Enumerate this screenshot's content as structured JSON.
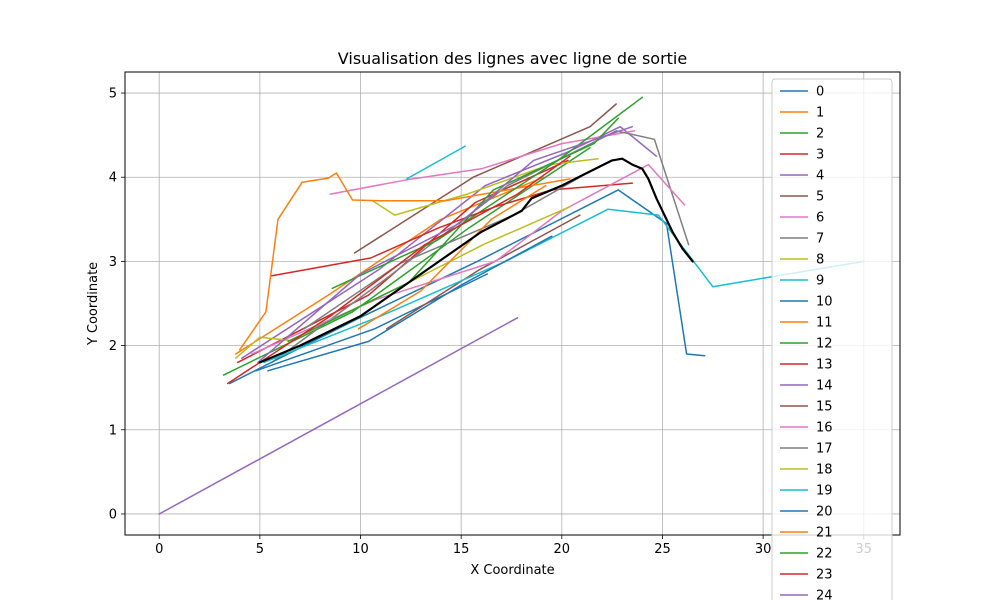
{
  "chart_data": {
    "type": "line",
    "title": "Visualisation des lignes avec ligne de sortie",
    "xlabel": "X Coordinate",
    "ylabel": "Y Coordinate",
    "xlim": [
      -1.7,
      36.8
    ],
    "ylim": [
      -0.25,
      5.25
    ],
    "xticks": [
      0,
      5,
      10,
      15,
      20,
      25,
      30,
      35
    ],
    "yticks": [
      0,
      1,
      2,
      3,
      4,
      5
    ],
    "grid": true,
    "legend_position": "right (overflowing bottom)",
    "series": [
      {
        "name": "0",
        "color": "#1f77b4",
        "x": [
          4.8,
          10.7,
          16.3
        ],
        "y": [
          1.7,
          2.2,
          2.85
        ]
      },
      {
        "name": "1",
        "color": "#ff7f0e",
        "x": [
          3.8,
          8.4,
          14.0,
          19.1
        ],
        "y": [
          1.9,
          2.6,
          3.5,
          4.0
        ]
      },
      {
        "name": "2",
        "color": "#2ca02c",
        "x": [
          3.2,
          9.6,
          15.4,
          21.4
        ],
        "y": [
          1.65,
          2.4,
          3.4,
          4.35
        ]
      },
      {
        "name": "3",
        "color": "#d62728",
        "x": [
          3.9,
          10.4,
          15.7,
          20.3
        ],
        "y": [
          1.8,
          2.6,
          3.7,
          4.2
        ]
      },
      {
        "name": "4",
        "color": "#9467bd",
        "x": [
          4.1,
          10.9,
          16.2,
          20.3,
          22.9,
          24.7
        ],
        "y": [
          1.85,
          2.9,
          3.9,
          4.3,
          4.6,
          4.25
        ]
      },
      {
        "name": "5",
        "color": "#8c564b",
        "x": [
          9.7,
          15.6,
          21.4,
          22.7
        ],
        "y": [
          3.1,
          4.0,
          4.6,
          4.87
        ]
      },
      {
        "name": "6",
        "color": "#e377c2",
        "x": [
          8.5,
          12.3,
          16.0,
          20.0,
          23.6
        ],
        "y": [
          3.8,
          3.97,
          4.1,
          4.4,
          4.55
        ]
      },
      {
        "name": "7",
        "color": "#7f7f7f",
        "x": [
          5.6,
          11.3,
          17.3,
          22.7,
          24.6,
          26.3
        ],
        "y": [
          1.8,
          2.8,
          3.9,
          4.55,
          4.45,
          3.2
        ]
      },
      {
        "name": "8",
        "color": "#bcbd22",
        "x": [
          10.6,
          11.7,
          15.3,
          19.4,
          21.8
        ],
        "y": [
          3.72,
          3.55,
          3.8,
          4.15,
          4.22
        ]
      },
      {
        "name": "9",
        "color": "#17becf",
        "x": [
          12.3,
          15.2
        ],
        "y": [
          3.98,
          4.37
        ]
      },
      {
        "name": "10",
        "color": "#1f77b4",
        "x": [
          3.5,
          9.7,
          15.8,
          22.8,
          25.2,
          26.2,
          27.1
        ],
        "y": [
          1.55,
          2.3,
          3.0,
          3.85,
          3.45,
          1.9,
          1.88
        ]
      },
      {
        "name": "11",
        "color": "#ff7f0e",
        "x": [
          4.0,
          5.3,
          5.9,
          7.1,
          8.4,
          8.8,
          9.6,
          11.0,
          14.2,
          20.4
        ],
        "y": [
          1.95,
          2.4,
          3.5,
          3.94,
          3.99,
          4.05,
          3.73,
          3.72,
          3.72,
          3.98
        ]
      },
      {
        "name": "12",
        "color": "#2ca02c",
        "x": [
          8.6,
          13.8,
          19.8,
          24.0
        ],
        "y": [
          2.68,
          3.25,
          4.2,
          4.95
        ]
      },
      {
        "name": "13",
        "color": "#d62728",
        "x": [
          5.6,
          10.5,
          13.9,
          16.7,
          19.5,
          23.5
        ],
        "y": [
          2.83,
          3.04,
          3.4,
          3.65,
          3.85,
          3.93
        ]
      },
      {
        "name": "14",
        "color": "#9467bd",
        "x": [
          0.0,
          17.8
        ],
        "y": [
          0.0,
          2.33
        ]
      },
      {
        "name": "15",
        "color": "#8c564b",
        "x": [
          11.3,
          15.9,
          20.9
        ],
        "y": [
          2.2,
          2.9,
          3.55
        ]
      },
      {
        "name": "16",
        "color": "#e377c2",
        "x": [
          4.6,
          10.8,
          16.7,
          20.0,
          24.3,
          26.1
        ],
        "y": [
          1.9,
          2.55,
          3.0,
          3.6,
          4.15,
          3.67
        ]
      },
      {
        "name": "17",
        "color": "#7f7f7f",
        "x": [
          7.2,
          12.0,
          17.6,
          20.9
        ],
        "y": [
          2.2,
          2.98,
          3.55,
          4.0
        ]
      },
      {
        "name": "18",
        "color": "#bcbd22",
        "x": [
          3.8,
          5.0,
          6.5,
          12.4,
          16.1,
          20.4
        ],
        "y": [
          1.85,
          2.1,
          2.06,
          2.75,
          3.2,
          3.65
        ]
      },
      {
        "name": "19",
        "color": "#17becf",
        "x": [
          5.2,
          11.0,
          17.2,
          22.3,
          24.8,
          27.5,
          32.0,
          35.0
        ],
        "y": [
          1.8,
          2.35,
          3.0,
          3.62,
          3.55,
          2.7,
          2.88,
          3.0
        ]
      },
      {
        "name": "20",
        "color": "#1f77b4",
        "x": [
          5.4,
          10.4,
          15.0,
          19.5
        ],
        "y": [
          1.7,
          2.05,
          2.72,
          3.3
        ]
      },
      {
        "name": "21",
        "color": "#ff7f0e",
        "x": [
          9.9,
          13.0,
          16.5,
          19.2
        ],
        "y": [
          2.2,
          2.65,
          3.5,
          3.9
        ]
      },
      {
        "name": "22",
        "color": "#2ca02c",
        "x": [
          6.4,
          12.4,
          16.6,
          21.6,
          22.8
        ],
        "y": [
          2.05,
          2.75,
          3.85,
          4.4,
          4.7
        ]
      },
      {
        "name": "23",
        "color": "#d62728",
        "x": [
          3.4,
          8.5,
          13.2,
          17.8,
          20.4
        ],
        "y": [
          1.55,
          2.35,
          3.2,
          3.8,
          4.25
        ]
      },
      {
        "name": "24",
        "color": "#9467bd",
        "x": [
          4.9,
          10.0,
          14.9,
          18.6,
          23.5
        ],
        "y": [
          1.8,
          2.85,
          3.45,
          4.2,
          4.6
        ]
      },
      {
        "color": "#000000",
        "x": [
          5.0,
          7.0,
          10.0,
          13.0,
          16.0,
          18.0,
          18.5,
          20.0,
          21.0,
          22.5,
          23.0,
          23.5,
          24.0,
          24.3,
          24.7,
          25.5,
          26.0,
          26.5
        ],
        "y": [
          1.8,
          2.0,
          2.35,
          2.85,
          3.35,
          3.6,
          3.75,
          3.9,
          4.02,
          4.2,
          4.22,
          4.15,
          4.1,
          3.98,
          3.75,
          3.35,
          3.15,
          3.0
        ]
      }
    ]
  }
}
